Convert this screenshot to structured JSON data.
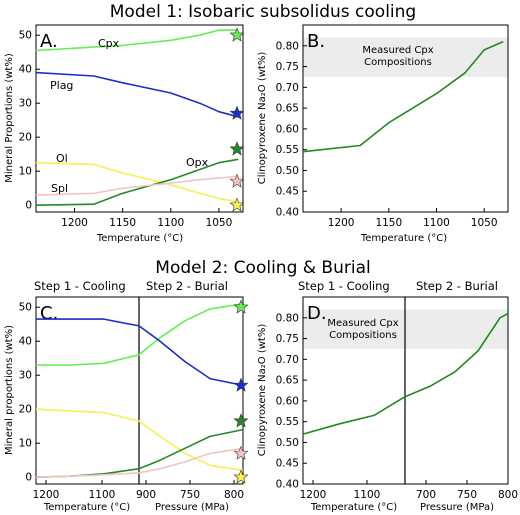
{
  "titles": {
    "model1": "Model 1: Isobaric subsolidus cooling",
    "model2": "Model 2: Cooling & Burial"
  },
  "colors": {
    "Cpx": "#66ee55",
    "Plag": "#1a2fcc",
    "Ol": "#f7f250",
    "Opx": "#238a2c",
    "Spl": "#f3c4c4",
    "Na2O": "#1f8a1f",
    "band": "#ececec"
  },
  "chart_data": [
    {
      "id": "A",
      "type": "line",
      "panel_letter": "A.",
      "xlabel": "Temperature (°C)",
      "ylabel": "Mineral Proportions (wt%)",
      "xlim": [
        1240,
        1025
      ],
      "ylim": [
        -2,
        53
      ],
      "xticks": [
        1200,
        1150,
        1100,
        1050
      ],
      "yticks": [
        0,
        10,
        20,
        30,
        40,
        50
      ],
      "x": [
        1240,
        1180,
        1150,
        1100,
        1070,
        1050,
        1030
      ],
      "series": [
        {
          "name": "Cpx",
          "color": "#66ee55",
          "values": [
            45.5,
            46.5,
            47,
            48.5,
            50,
            51.5,
            51.5
          ]
        },
        {
          "name": "Plag",
          "color": "#1a2fcc",
          "values": [
            39,
            38,
            36,
            33,
            30,
            27.5,
            26
          ]
        },
        {
          "name": "Ol",
          "color": "#f7f250",
          "values": [
            12.5,
            12,
            9.5,
            6,
            3.5,
            2,
            1
          ]
        },
        {
          "name": "Opx",
          "color": "#238a2c",
          "values": [
            0,
            0.3,
            3.5,
            7.5,
            10.5,
            12.5,
            13.5
          ]
        },
        {
          "name": "Spl",
          "color": "#f3c4c4",
          "values": [
            3,
            3.5,
            5,
            6.5,
            7.5,
            8,
            8.5
          ]
        }
      ],
      "stars": [
        {
          "mineral": "Cpx",
          "x": 1030,
          "y": 50,
          "color": "#66ee55"
        },
        {
          "mineral": "Plag",
          "x": 1030,
          "y": 27,
          "color": "#1a2fcc"
        },
        {
          "mineral": "Opx",
          "x": 1030,
          "y": 16.5,
          "color": "#238a2c"
        },
        {
          "mineral": "Spl",
          "x": 1030,
          "y": 7,
          "color": "#f3c4c4"
        },
        {
          "mineral": "Ol",
          "x": 1030,
          "y": 0,
          "color": "#f7f250"
        }
      ]
    },
    {
      "id": "B",
      "type": "line",
      "panel_letter": "B.",
      "xlabel": "Temperature (°C)",
      "ylabel": "Clinopyroxene Na₂O (wt%)",
      "xlim": [
        1240,
        1025
      ],
      "ylim": [
        0.4,
        0.85
      ],
      "xticks": [
        1200,
        1150,
        1100,
        1050
      ],
      "yticks": [
        0.4,
        0.45,
        0.5,
        0.55,
        0.6,
        0.65,
        0.7,
        0.75,
        0.8
      ],
      "band": {
        "y": [
          0.725,
          0.82
        ],
        "label": [
          "Measured Cpx",
          "Compositions"
        ]
      },
      "series": [
        {
          "name": "Na₂O",
          "color": "#1f8a1f",
          "x": [
            1240,
            1180,
            1150,
            1100,
            1070,
            1050,
            1030
          ],
          "values": [
            0.545,
            0.56,
            0.615,
            0.685,
            0.735,
            0.79,
            0.81
          ]
        }
      ]
    },
    {
      "id": "C",
      "type": "line",
      "panel_letter": "C.",
      "step_labels": [
        "Step 1 - Cooling",
        "Step 2 - Burial"
      ],
      "xlabel_left": "Temperature (°C)",
      "xlabel_right": "Pressure (MPa)",
      "ylabel": "Mineral proportions (wt%)",
      "xticks": [
        "1200",
        "1100",
        "900",
        "750",
        "800"
      ],
      "yticks": [
        0,
        10,
        20,
        30,
        40,
        50
      ],
      "ylim": [
        -2,
        53
      ],
      "series": [
        {
          "name": "Cpx",
          "color": "#66ee55",
          "values": [
            33,
            33,
            33.5,
            36,
            41,
            46,
            49.5,
            51
          ]
        },
        {
          "name": "Plag",
          "color": "#1a2fcc",
          "values": [
            46.5,
            46.5,
            46.5,
            44.5,
            40,
            34,
            29,
            27
          ]
        },
        {
          "name": "Ol",
          "color": "#f7f250",
          "values": [
            20,
            19.5,
            19,
            16.5,
            12,
            7,
            3.5,
            2
          ]
        },
        {
          "name": "Opx",
          "color": "#238a2c",
          "values": [
            0,
            0.3,
            1,
            2.5,
            5,
            8.5,
            12,
            14
          ]
        },
        {
          "name": "Spl",
          "color": "#f3c4c4",
          "values": [
            0,
            0.3,
            0.7,
            1.3,
            2.5,
            4.5,
            7,
            8.5
          ]
        }
      ],
      "stars": [
        {
          "mineral": "Cpx",
          "y": 50,
          "color": "#66ee55"
        },
        {
          "mineral": "Plag",
          "y": 27,
          "color": "#1a2fcc"
        },
        {
          "mineral": "Opx",
          "y": 16.5,
          "color": "#238a2c"
        },
        {
          "mineral": "Spl",
          "y": 7,
          "color": "#f3c4c4"
        },
        {
          "mineral": "Ol",
          "y": 0,
          "color": "#f7f250"
        }
      ]
    },
    {
      "id": "D",
      "type": "line",
      "panel_letter": "D.",
      "step_labels": [
        "Step 1 - Cooling",
        "Step 2 - Burial"
      ],
      "xlabel_left": "Temperature (°C)",
      "xlabel_right": "Pressure (MPa)",
      "ylabel": "Clinopyroxene Na₂O (wt%)",
      "xticks": [
        "1200",
        "1100",
        "700",
        "750",
        "800"
      ],
      "yticks": [
        0.4,
        0.45,
        0.5,
        0.55,
        0.6,
        0.65,
        0.7,
        0.75,
        0.8
      ],
      "ylim": [
        0.4,
        0.85
      ],
      "band": {
        "y": [
          0.725,
          0.82
        ],
        "label": [
          "Measured Cpx",
          "Compositions"
        ]
      },
      "series": [
        {
          "name": "Na₂O",
          "color": "#1f8a1f",
          "values": [
            0.52,
            0.545,
            0.565,
            0.61,
            0.635,
            0.67,
            0.72,
            0.8,
            0.81
          ]
        }
      ]
    }
  ]
}
